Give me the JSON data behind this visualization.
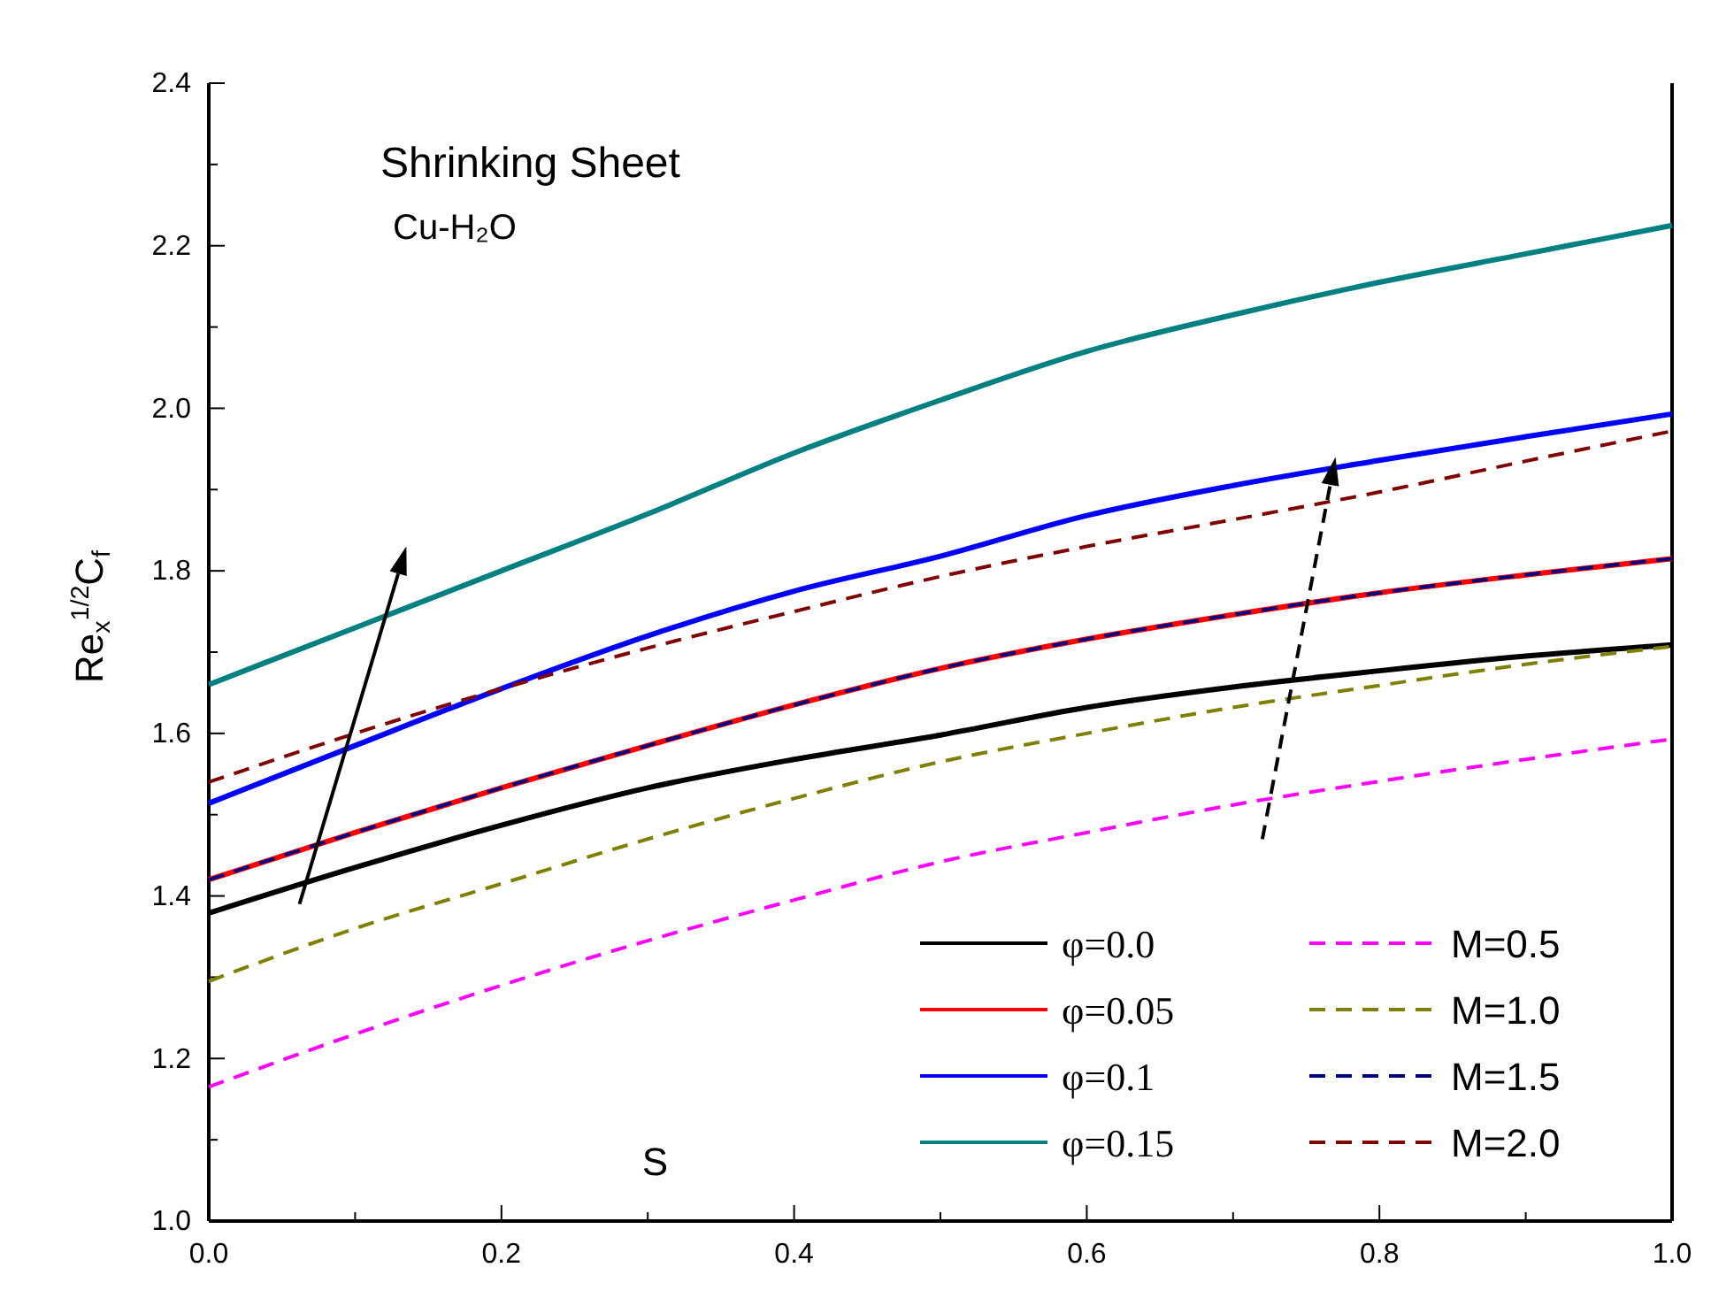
{
  "chart_data": {
    "type": "line",
    "xlabel": "S",
    "ylabel": "Re$_{x}$$^{1/2}$C$_{f}$",
    "annotations": [
      "Shrinking Sheet",
      "Cu-H₂O"
    ],
    "x": [
      0,
      0.1,
      0.2,
      0.3,
      0.4,
      0.5,
      0.6,
      0.7,
      0.8,
      0.9,
      1.0
    ],
    "xlim": [
      0,
      1
    ],
    "ylim": [
      1.0,
      2.4
    ],
    "xticks": [
      {
        "value": 0,
        "label": "0.0"
      },
      {
        "value": 0.1,
        "label": null
      },
      {
        "value": 0.2,
        "label": "0.2"
      },
      {
        "value": 0.3,
        "label": null
      },
      {
        "value": 0.4,
        "label": "0.4"
      },
      {
        "value": 0.5,
        "label": null
      },
      {
        "value": 0.6,
        "label": "0.6"
      },
      {
        "value": 0.7,
        "label": null
      },
      {
        "value": 0.8,
        "label": "0.8"
      },
      {
        "value": 0.9,
        "label": null
      },
      {
        "value": 1,
        "label": "1.0"
      }
    ],
    "yticks": [
      {
        "value": 1.0,
        "label": "1.0"
      },
      {
        "value": 1.1,
        "label": null
      },
      {
        "value": 1.2,
        "label": "1.2"
      },
      {
        "value": 1.3,
        "label": null
      },
      {
        "value": 1.4,
        "label": "1.4"
      },
      {
        "value": 1.5,
        "label": null
      },
      {
        "value": 1.6,
        "label": "1.6"
      },
      {
        "value": 1.7,
        "label": null
      },
      {
        "value": 1.8,
        "label": "1.8"
      },
      {
        "value": 1.9,
        "label": null
      },
      {
        "value": 2.0,
        "label": "2.0"
      },
      {
        "value": 2.1,
        "label": null
      },
      {
        "value": 2.2,
        "label": "2.2"
      },
      {
        "value": 2.3,
        "label": null
      },
      {
        "value": 2.4,
        "label": "2.4"
      }
    ],
    "legend": "bottom right",
    "marker": "none",
    "series": [
      {
        "name": "φ=0.0",
        "color": "#000000",
        "line_style": "solid",
        "values": [
          1.379,
          1.435,
          1.487,
          1.533,
          1.568,
          1.598,
          1.632,
          1.657,
          1.677,
          1.695,
          1.709
        ]
      },
      {
        "name": "φ=0.05",
        "color": "#ff0000",
        "line_style": "solid",
        "values": [
          1.42,
          1.478,
          1.533,
          1.585,
          1.635,
          1.68,
          1.716,
          1.746,
          1.773,
          1.795,
          1.815
        ]
      },
      {
        "name": "φ=0.1",
        "color": "#0000ff",
        "line_style": "solid",
        "values": [
          1.514,
          1.585,
          1.655,
          1.72,
          1.775,
          1.818,
          1.868,
          1.905,
          1.936,
          1.965,
          1.993
        ]
      },
      {
        "name": "φ=0.15",
        "color": "#008080",
        "line_style": "solid",
        "values": [
          1.66,
          1.73,
          1.8,
          1.87,
          1.945,
          2.01,
          2.07,
          2.115,
          2.155,
          2.19,
          2.225
        ]
      },
      {
        "name": "M=0.5",
        "color": "#ff00ff",
        "line_style": "dashed",
        "values": [
          1.165,
          1.23,
          1.29,
          1.345,
          1.395,
          1.442,
          1.478,
          1.512,
          1.541,
          1.568,
          1.593
        ]
      },
      {
        "name": "M=1.0",
        "color": "#808000",
        "line_style": "dashed",
        "values": [
          1.295,
          1.36,
          1.415,
          1.47,
          1.52,
          1.565,
          1.6,
          1.632,
          1.659,
          1.685,
          1.707
        ]
      },
      {
        "name": "M=1.5",
        "color": "#000080",
        "line_style": "dashed",
        "values": [
          1.42,
          1.478,
          1.533,
          1.585,
          1.635,
          1.68,
          1.716,
          1.746,
          1.773,
          1.795,
          1.815
        ]
      },
      {
        "name": "M=2.0",
        "color": "#800000",
        "line_style": "dashed",
        "values": [
          1.54,
          1.6,
          1.655,
          1.705,
          1.75,
          1.793,
          1.83,
          1.863,
          1.897,
          1.935,
          1.972
        ]
      }
    ]
  }
}
